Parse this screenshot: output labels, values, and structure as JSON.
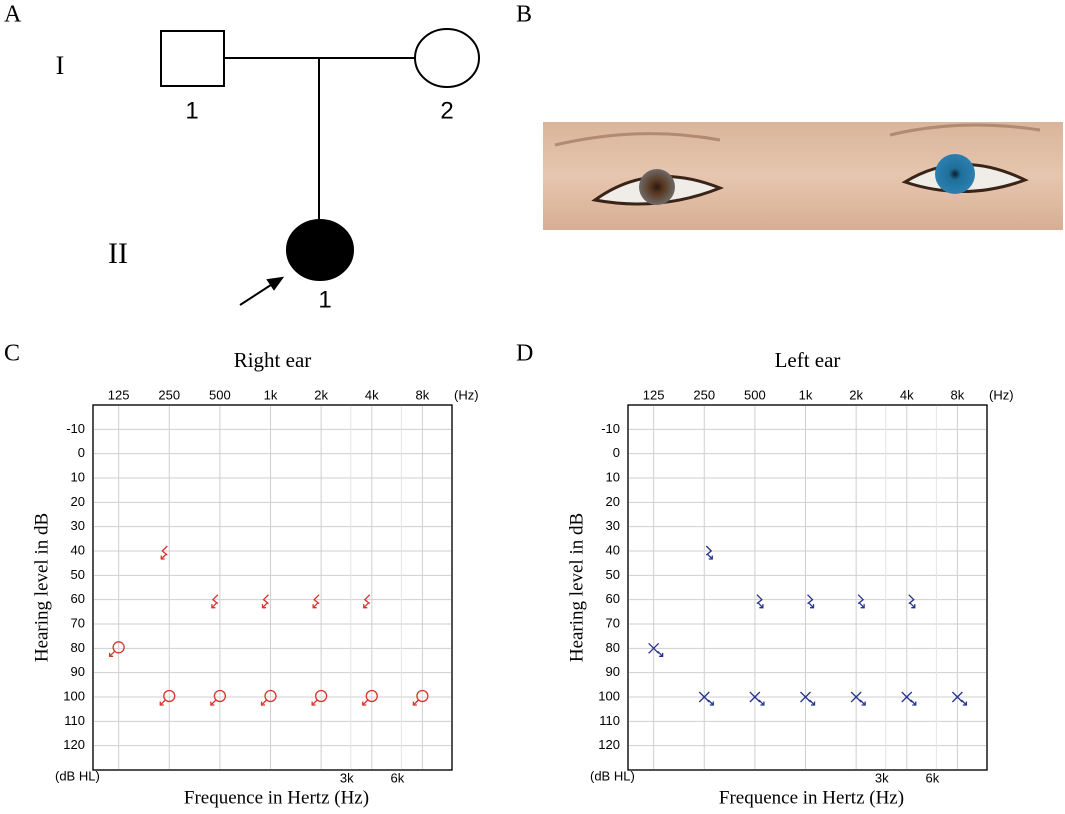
{
  "panel_labels": [
    "A",
    "B",
    "C",
    "D"
  ],
  "pedigree": {
    "generation_labels": [
      "I",
      "II"
    ],
    "individual_labels": [
      "1",
      "2",
      "1"
    ]
  },
  "chart_data": [
    {
      "type": "scatter",
      "title": "Right ear",
      "x_label": "Frequence in Hertz (Hz)",
      "y_label": "Hearing level in dB",
      "x_unit_label": "(Hz)",
      "y_unit_label": "(dB HL)",
      "log_x": true,
      "grid": true,
      "xlim": [
        88,
        12000
      ],
      "ylim": [
        130,
        -20
      ],
      "xticks": [
        125,
        250,
        500,
        {
          "value": 1000,
          "label": "1k"
        },
        {
          "value": 2000,
          "label": "2k"
        },
        {
          "value": 4000,
          "label": "4k"
        },
        {
          "value": 8000,
          "label": "8k"
        }
      ],
      "xticks_minor": [
        {
          "value": 3000,
          "label": "3k"
        },
        {
          "value": 6000,
          "label": "6k"
        }
      ],
      "yticks": [
        -10,
        0,
        10,
        20,
        30,
        40,
        50,
        60,
        70,
        80,
        90,
        100,
        110,
        120
      ],
      "series": [
        {
          "marker": "<",
          "color": "#d9342b",
          "x": [
            250,
            500,
            1000,
            2000,
            4000
          ],
          "values": [
            40,
            60,
            60,
            60,
            60
          ]
        },
        {
          "marker": "o",
          "color": "#d9342b",
          "x": [
            125,
            250,
            500,
            1000,
            2000,
            4000,
            8000
          ],
          "values": [
            80,
            100,
            100,
            100,
            100,
            100,
            100
          ]
        }
      ]
    },
    {
      "type": "scatter",
      "title": "Left ear",
      "x_label": "Frequence in Hertz (Hz)",
      "y_label": "Hearing level in dB",
      "x_unit_label": "(Hz)",
      "y_unit_label": "(dB HL)",
      "log_x": true,
      "grid": true,
      "xlim": [
        88,
        12000
      ],
      "ylim": [
        130,
        -20
      ],
      "xticks": [
        125,
        250,
        500,
        {
          "value": 1000,
          "label": "1k"
        },
        {
          "value": 2000,
          "label": "2k"
        },
        {
          "value": 4000,
          "label": "4k"
        },
        {
          "value": 8000,
          "label": "8k"
        }
      ],
      "xticks_minor": [
        {
          "value": 3000,
          "label": "3k"
        },
        {
          "value": 6000,
          "label": "6k"
        }
      ],
      "yticks": [
        -10,
        0,
        10,
        20,
        30,
        40,
        50,
        60,
        70,
        80,
        90,
        100,
        110,
        120
      ],
      "series": [
        {
          "marker": ">",
          "color": "#26338c",
          "x": [
            250,
            500,
            1000,
            2000,
            4000
          ],
          "values": [
            40,
            60,
            60,
            60,
            60
          ]
        },
        {
          "marker": "x",
          "color": "#26338c",
          "x": [
            125,
            250,
            500,
            1000,
            2000,
            4000,
            8000
          ],
          "values": [
            80,
            100,
            100,
            100,
            100,
            100,
            100
          ]
        }
      ]
    }
  ]
}
